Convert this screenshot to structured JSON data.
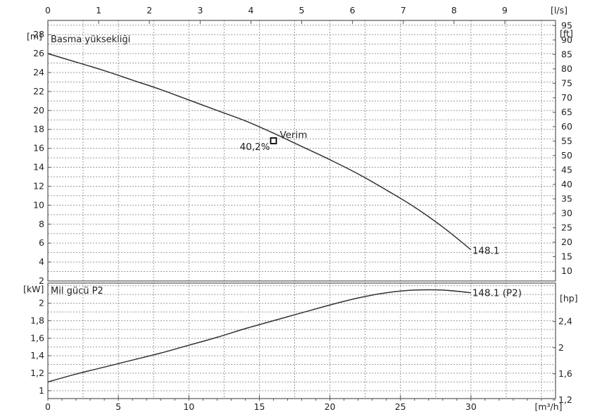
{
  "chart_data": [
    {
      "type": "line",
      "title": "Basma yüksekliği",
      "ylabel": "[m]",
      "ylabel_right": "[ft]",
      "xlabel_top": "[l/s]",
      "x_top_ticks": [
        0,
        1,
        2,
        3,
        4,
        5,
        6,
        7,
        8,
        9
      ],
      "xlim": [
        0,
        36
      ],
      "ylim": [
        2,
        29.5
      ],
      "y_ticks": [
        2,
        4,
        6,
        8,
        10,
        12,
        14,
        16,
        18,
        20,
        22,
        24,
        26,
        28
      ],
      "y_right_ticks": [
        10,
        15,
        20,
        25,
        30,
        35,
        40,
        45,
        50,
        55,
        60,
        65,
        70,
        75,
        80,
        85,
        90,
        95
      ],
      "grid": true,
      "series": [
        {
          "name": "148.1",
          "x": [
            0,
            2,
            4,
            6,
            8,
            10,
            12,
            14,
            16,
            18,
            20,
            22,
            24,
            26,
            28,
            30
          ],
          "y": [
            26,
            25.1,
            24.2,
            23.2,
            22.2,
            21.1,
            20.0,
            18.9,
            17.6,
            16.2,
            14.8,
            13.3,
            11.6,
            9.8,
            7.7,
            5.3
          ]
        }
      ],
      "marker": {
        "x": 16,
        "y": 16.8,
        "label": "Verim",
        "value_label": "40,2%"
      }
    },
    {
      "type": "line",
      "title": "Mil gücü P2",
      "ylabel": "[kW]",
      "ylabel_right": "[hp]",
      "xlabel": "[m³/h]",
      "x_ticks": [
        0,
        5,
        10,
        15,
        20,
        25,
        30
      ],
      "xlim": [
        0,
        36
      ],
      "ylim": [
        0.91,
        2.23
      ],
      "y_ticks": [
        1,
        1.2,
        1.4,
        1.6,
        1.8,
        2
      ],
      "y_tick_labels": [
        "1",
        "1,2",
        "1,4",
        "1,6",
        "1,8",
        "2"
      ],
      "y_right_ticks": [
        1.2,
        1.6,
        2,
        2.4
      ],
      "y_right_tick_labels": [
        "1,2",
        "1,6",
        "2",
        "2,4"
      ],
      "grid": true,
      "series": [
        {
          "name": "148.1 (P2)",
          "x": [
            0,
            2,
            4,
            6,
            8,
            10,
            12,
            14,
            16,
            18,
            20,
            22,
            24,
            26,
            28,
            30
          ],
          "y": [
            1.1,
            1.19,
            1.27,
            1.35,
            1.43,
            1.52,
            1.61,
            1.71,
            1.8,
            1.89,
            1.98,
            2.06,
            2.12,
            2.15,
            2.15,
            2.12
          ]
        }
      ]
    }
  ]
}
